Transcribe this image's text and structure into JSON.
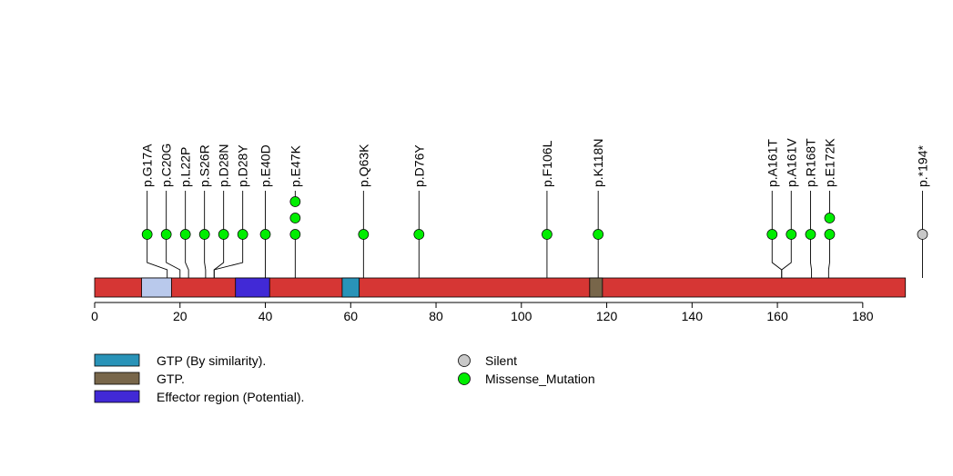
{
  "chart_data": {
    "type": "lollipop",
    "title": "",
    "xlabel": "",
    "ylabel": "",
    "xlim": [
      0,
      193
    ],
    "protein_length": 190,
    "ticks": [
      0,
      20,
      40,
      60,
      80,
      100,
      120,
      140,
      160,
      180
    ],
    "tick_labels": [
      "0",
      "20",
      "40",
      "60",
      "80",
      "100",
      "120",
      "140",
      "160",
      "180"
    ],
    "backbone_color": "#d63634",
    "segments": [
      {
        "start": 11,
        "end": 18,
        "color": "#b9c9ec",
        "kind": "unlabeled"
      },
      {
        "start": 33,
        "end": 41,
        "color": "#4129d6",
        "kind": "Effector region (Potential)."
      },
      {
        "start": 58,
        "end": 62,
        "color": "#2993b8",
        "kind": "GTP (By similarity)."
      },
      {
        "start": 116,
        "end": 119,
        "color": "#78664a",
        "kind": "GTP."
      }
    ],
    "mutations": [
      {
        "label": "p.G17A",
        "pos": 17,
        "count": 1,
        "type": "Missense_Mutation"
      },
      {
        "label": "p.C20G",
        "pos": 20,
        "count": 1,
        "type": "Missense_Mutation"
      },
      {
        "label": "p.L22P",
        "pos": 22,
        "count": 1,
        "type": "Missense_Mutation"
      },
      {
        "label": "p.S26R",
        "pos": 26,
        "count": 1,
        "type": "Missense_Mutation"
      },
      {
        "label": "p.D28N",
        "pos": 28,
        "count": 1,
        "type": "Missense_Mutation"
      },
      {
        "label": "p.D28Y",
        "pos": 28,
        "count": 1,
        "type": "Missense_Mutation"
      },
      {
        "label": "p.E40D",
        "pos": 40,
        "count": 1,
        "type": "Missense_Mutation"
      },
      {
        "label": "p.E47K",
        "pos": 47,
        "count": 3,
        "type": "Missense_Mutation"
      },
      {
        "label": "p.Q63K",
        "pos": 63,
        "count": 1,
        "type": "Missense_Mutation"
      },
      {
        "label": "p.D76Y",
        "pos": 76,
        "count": 1,
        "type": "Missense_Mutation"
      },
      {
        "label": "p.F106L",
        "pos": 106,
        "count": 1,
        "type": "Missense_Mutation"
      },
      {
        "label": "p.K118N",
        "pos": 118,
        "count": 1,
        "type": "Missense_Mutation"
      },
      {
        "label": "p.A161T",
        "pos": 161,
        "count": 1,
        "type": "Missense_Mutation"
      },
      {
        "label": "p.A161V",
        "pos": 161,
        "count": 1,
        "type": "Missense_Mutation"
      },
      {
        "label": "p.R168T",
        "pos": 168,
        "count": 1,
        "type": "Missense_Mutation"
      },
      {
        "label": "p.E172K",
        "pos": 172,
        "count": 2,
        "type": "Missense_Mutation"
      },
      {
        "label": "p.*194*",
        "pos": 194,
        "count": 1,
        "type": "Silent"
      }
    ],
    "legend": {
      "placement": "bottom",
      "domains": [
        {
          "label": "GTP (By similarity).",
          "color": "#2993b8"
        },
        {
          "label": "GTP.",
          "color": "#78664a"
        },
        {
          "label": "Effector region (Potential).",
          "color": "#4129d6"
        }
      ],
      "mutation_types": [
        {
          "label": "Silent",
          "color": "#c8c8c8"
        },
        {
          "label": "Missense_Mutation",
          "color": "#00ee00"
        }
      ]
    }
  }
}
